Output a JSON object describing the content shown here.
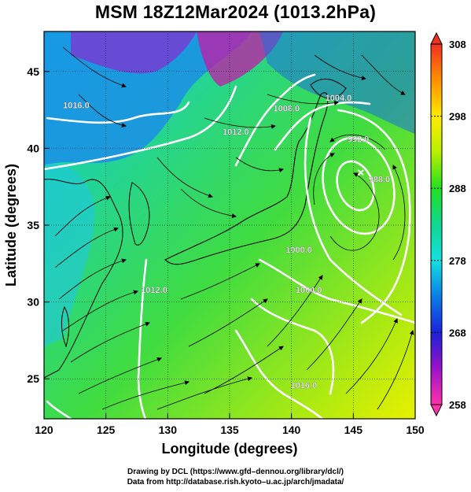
{
  "title": "MSM 18Z12Mar2024 (1013.2hPa)",
  "x_axis": {
    "label": "Longitude (degrees)",
    "ticks": [
      120,
      125,
      130,
      135,
      140,
      145,
      150
    ]
  },
  "y_axis": {
    "label": "Latitude  (degrees)",
    "ticks": [
      25,
      30,
      35,
      40,
      45
    ]
  },
  "map_extent": {
    "lon": [
      120,
      150
    ],
    "lat": [
      22.4,
      47.6
    ]
  },
  "colorbar": {
    "range": [
      258,
      308
    ],
    "ticks": [
      258,
      268,
      278,
      288,
      298,
      308
    ],
    "stops": [
      "#ff33aa",
      "#9a12c8",
      "#1a22d8",
      "#0a7ee8",
      "#14e0e0",
      "#10d890",
      "#22e020",
      "#b8f000",
      "#ffea00",
      "#ff9000",
      "#f03020"
    ]
  },
  "contours": [
    {
      "label": "1016.0",
      "lon": 122.6,
      "lat": 42.6
    },
    {
      "label": "1012.0",
      "lon": 135.5,
      "lat": 40.9
    },
    {
      "label": "1008.0",
      "lon": 139.6,
      "lat": 42.4
    },
    {
      "label": "1004.0",
      "lon": 143.8,
      "lat": 43.1
    },
    {
      "label": "992.0",
      "lon": 145.4,
      "lat": 40.4
    },
    {
      "label": "988.0",
      "lon": 147.1,
      "lat": 37.8
    },
    {
      "label": "1000.0",
      "lon": 140.6,
      "lat": 33.2
    },
    {
      "label": "1004.0",
      "lon": 141.4,
      "lat": 30.6
    },
    {
      "label": "1012.0",
      "lon": 128.9,
      "lat": 30.6
    },
    {
      "label": "1016.0",
      "lon": 141.0,
      "lat": 24.4
    }
  ],
  "low_center": {
    "lon": 145.6,
    "lat": 38.4
  },
  "credits": [
    "Drawing by DCL (https://www.gfd–dennou.org/library/dcl/)",
    "Data from http://database.rish.kyoto–u.ac.jp/arch/jmadata/"
  ]
}
